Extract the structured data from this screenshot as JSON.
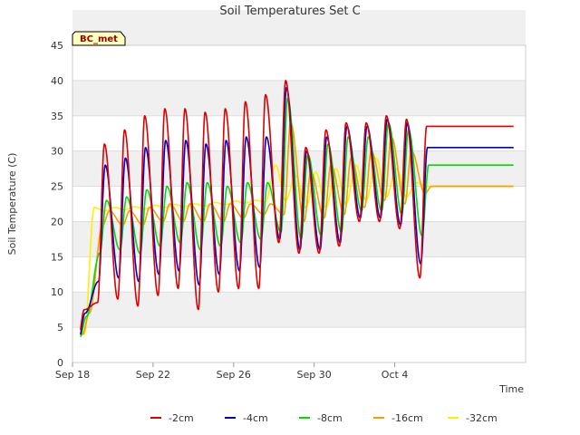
{
  "chart_data": {
    "type": "line",
    "title": "Soil Temperatures Set C",
    "xlabel": "Time",
    "ylabel": "Soil Temperature (C)",
    "site_label": "BC_met",
    "x_start": "Sep 18",
    "x_end_day": 21.9,
    "xlim_days": [
      0,
      22.5
    ],
    "x_ticks": [
      {
        "label": "Sep 18",
        "day": 0
      },
      {
        "label": "Sep 22",
        "day": 4
      },
      {
        "label": "Sep 26",
        "day": 8
      },
      {
        "label": "Sep 30",
        "day": 12
      },
      {
        "label": "Oct 4",
        "day": 16
      }
    ],
    "ylim": [
      0,
      45
    ],
    "y_ticks": [
      0,
      5,
      10,
      15,
      20,
      25,
      30,
      35,
      40,
      45
    ],
    "grid": true,
    "legend_position": "bottom",
    "daily_max": {
      "-2cm": [
        7.5,
        31,
        33,
        35,
        36,
        36,
        35.5,
        36,
        37,
        38,
        40,
        30.5,
        33,
        34,
        34,
        35,
        34.5,
        33.5
      ],
      "-4cm": [
        7,
        28,
        29,
        30.5,
        31.5,
        31.5,
        31,
        31.5,
        32,
        32,
        39,
        30,
        32,
        33.5,
        33.5,
        34.5,
        34,
        30.5
      ],
      "-8cm": [
        6.5,
        23,
        23.5,
        24.5,
        25,
        25.5,
        25.5,
        25,
        25.5,
        25.5,
        37.5,
        29.5,
        31,
        32,
        32,
        34,
        33,
        28
      ],
      "-16cm": [
        7,
        21.5,
        21.5,
        22,
        22.5,
        22.5,
        22.5,
        22.5,
        22.5,
        22.5,
        34,
        27,
        28,
        29,
        30,
        32,
        30,
        25
      ],
      "-32cm": [
        8,
        22,
        22,
        22.1,
        22.3,
        22.4,
        22.5,
        22.7,
        22.9,
        23,
        28,
        26.5,
        27,
        27.5,
        28,
        29,
        27.5,
        25.5
      ]
    },
    "daily_min": {
      "-2cm": [
        2.5,
        8.5,
        9,
        8,
        9.5,
        10.5,
        7.5,
        10,
        10.5,
        10.5,
        17,
        15.5,
        15.5,
        16.5,
        20,
        20,
        19,
        12
      ],
      "-4cm": [
        3,
        11.5,
        12,
        11.5,
        12.5,
        13,
        11,
        12.5,
        13,
        13.5,
        17.5,
        16,
        16,
        17,
        20.5,
        20.5,
        19.5,
        14
      ],
      "-8cm": [
        3.5,
        15.5,
        16,
        15.5,
        16.5,
        17,
        16,
        16.5,
        17,
        17.5,
        18.5,
        17.5,
        18,
        18.5,
        21.5,
        21.5,
        21,
        18
      ],
      "-16cm": [
        4,
        19.5,
        19.5,
        19.5,
        20,
        20,
        20,
        20,
        20.5,
        21,
        21,
        20,
        20.5,
        21,
        22,
        23,
        22.5,
        24
      ],
      "-32cm": [
        4,
        21.5,
        21.7,
        21.8,
        22,
        22.1,
        22.2,
        22.4,
        22.6,
        22.8,
        23,
        22,
        22,
        22.5,
        23,
        23.5,
        23.5,
        25
      ]
    },
    "series": [
      {
        "name": "-2cm",
        "color": "#dd0000",
        "peak_hour": 14,
        "trough_hour": 6
      },
      {
        "name": "-4cm",
        "color": "#0000cc",
        "peak_hour": 15,
        "trough_hour": 7
      },
      {
        "name": "-8cm",
        "color": "#00dd00",
        "peak_hour": 16.5,
        "trough_hour": 8.5
      },
      {
        "name": "-16cm",
        "color": "#ff9900",
        "peak_hour": 20,
        "trough_hour": 12
      },
      {
        "name": "-32cm",
        "color": "#ffee00",
        "peak_hour": 2,
        "trough_hour": 14
      }
    ]
  }
}
